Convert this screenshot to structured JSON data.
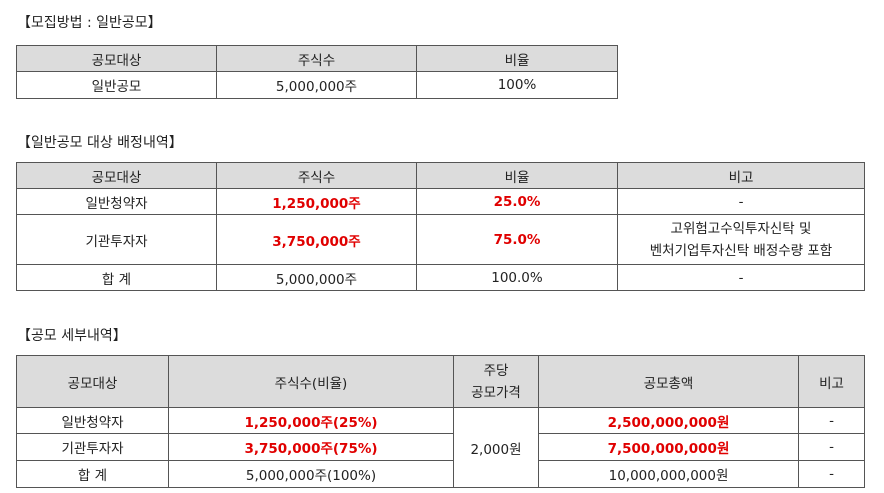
{
  "section1": {
    "title": "【모집방법 : 일반공모】",
    "headers": [
      "공모대상",
      "주식수",
      "비율"
    ],
    "row": [
      "일반공모",
      "5,000,000주",
      "100%"
    ]
  },
  "section2": {
    "title": "【일반공모 대상 배정내역】",
    "headers": [
      "공모대상",
      "주식수",
      "비율",
      "비고"
    ],
    "rows": [
      [
        "일반청약자",
        "1,250,000주",
        "25.0%",
        "-"
      ],
      [
        "기관투자자",
        "3,750,000주",
        "75.0%",
        "고위험고수익투자신탁 및",
        "벤처기업투자신탁 배정수량 포함"
      ],
      [
        "합 계",
        "5,000,000주",
        "100.0%",
        "-"
      ]
    ]
  },
  "section3": {
    "title": "【공모 세부내역】",
    "headers": [
      "공모대상",
      "주식수(비율)",
      "주당",
      "공모가격",
      "공모총액",
      "비고"
    ],
    "rows": [
      [
        "일반청약자",
        "1,250,000주(25%)",
        "2,500,000,000원",
        "-"
      ],
      [
        "기관투자자",
        "3,750,000주(75%)",
        "7,500,000,000원",
        "-"
      ],
      [
        "합 계",
        "5,000,000주(100%)",
        "10,000,000,000원",
        "-"
      ]
    ],
    "price": "2,000원"
  },
  "colors": {
    "highlight": "#e00000",
    "header_bg": "#dcdcdc",
    "border": "#555555"
  }
}
